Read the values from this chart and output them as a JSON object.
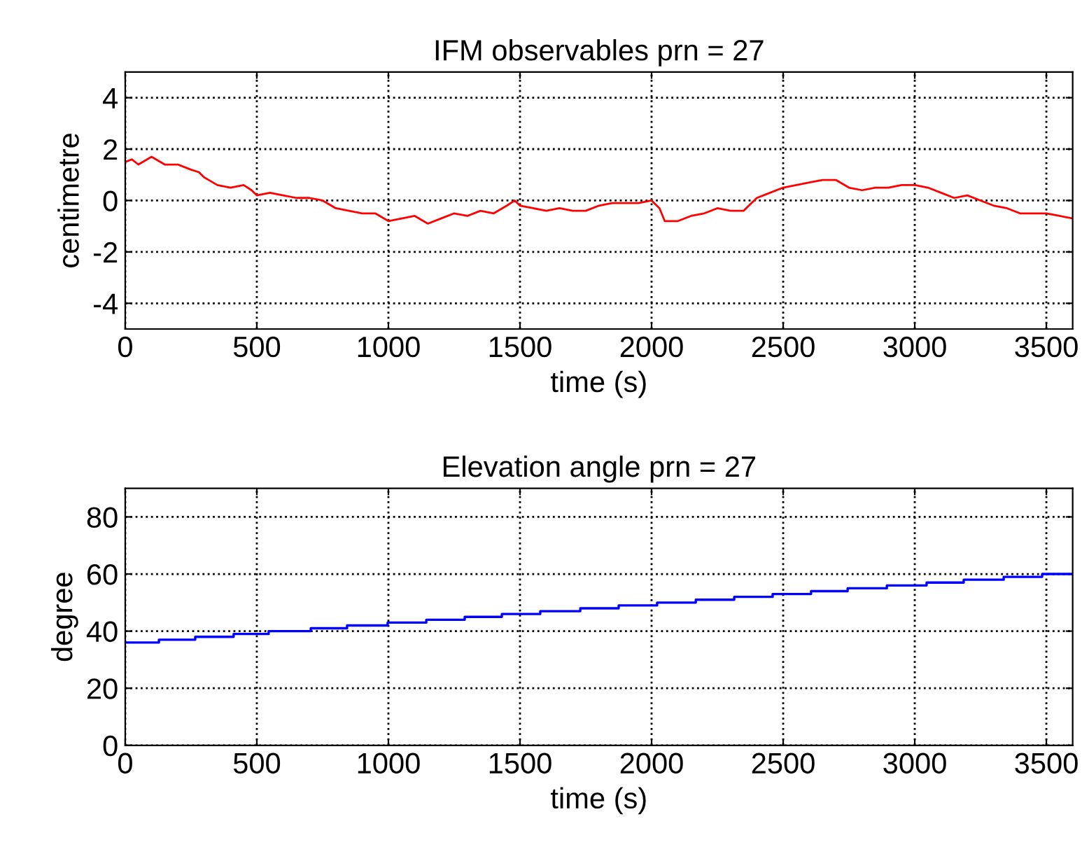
{
  "chart_data": [
    {
      "type": "line",
      "title": "IFM observables prn = 27",
      "xlabel": "time (s)",
      "ylabel": "centimetre",
      "xlim": [
        0,
        3600
      ],
      "xticks": [
        0,
        500,
        1000,
        1500,
        2000,
        2500,
        3000,
        3500
      ],
      "ylim": [
        -5,
        5
      ],
      "yticks": [
        -4,
        -2,
        0,
        2,
        4
      ],
      "grid": true,
      "legend": false,
      "series": [
        {
          "color": "#ff0000",
          "x": [
            0,
            25,
            50,
            100,
            150,
            200,
            250,
            280,
            300,
            350,
            400,
            450,
            480,
            500,
            550,
            600,
            650,
            700,
            750,
            800,
            850,
            900,
            950,
            1000,
            1050,
            1100,
            1150,
            1200,
            1250,
            1300,
            1350,
            1400,
            1450,
            1480,
            1500,
            1550,
            1600,
            1650,
            1700,
            1750,
            1800,
            1850,
            1900,
            1950,
            2000,
            2030,
            2050,
            2100,
            2150,
            2200,
            2250,
            2300,
            2350,
            2380,
            2400,
            2450,
            2500,
            2550,
            2600,
            2650,
            2700,
            2750,
            2800,
            2850,
            2900,
            2950,
            3000,
            3050,
            3100,
            3150,
            3200,
            3250,
            3300,
            3350,
            3400,
            3450,
            3500,
            3550,
            3600
          ],
          "values": [
            1.5,
            1.6,
            1.4,
            1.7,
            1.4,
            1.4,
            1.2,
            1.1,
            0.9,
            0.6,
            0.5,
            0.6,
            0.4,
            0.2,
            0.3,
            0.2,
            0.1,
            0.1,
            0.0,
            -0.3,
            -0.4,
            -0.5,
            -0.5,
            -0.8,
            -0.7,
            -0.6,
            -0.9,
            -0.7,
            -0.5,
            -0.6,
            -0.4,
            -0.5,
            -0.2,
            0.0,
            -0.2,
            -0.3,
            -0.4,
            -0.3,
            -0.4,
            -0.4,
            -0.2,
            -0.1,
            -0.1,
            -0.1,
            0.0,
            -0.3,
            -0.8,
            -0.8,
            -0.6,
            -0.5,
            -0.3,
            -0.4,
            -0.4,
            -0.1,
            0.1,
            0.3,
            0.5,
            0.6,
            0.7,
            0.8,
            0.8,
            0.5,
            0.4,
            0.5,
            0.5,
            0.6,
            0.6,
            0.5,
            0.3,
            0.1,
            0.2,
            0.0,
            -0.2,
            -0.3,
            -0.5,
            -0.5,
            -0.5,
            -0.6,
            -0.7
          ]
        }
      ]
    },
    {
      "type": "step",
      "title": "Elevation angle prn = 27",
      "xlabel": "time (s)",
      "ylabel": "degree",
      "xlim": [
        0,
        3600
      ],
      "xticks": [
        0,
        500,
        1000,
        1500,
        2000,
        2500,
        3000,
        3500
      ],
      "ylim": [
        0,
        90
      ],
      "yticks": [
        0,
        20,
        40,
        60,
        80
      ],
      "grid": true,
      "legend": false,
      "series": [
        {
          "color": "#0000ff",
          "x": [
            0,
            128,
            266,
            412,
            545,
            705,
            843,
            997,
            1144,
            1290,
            1431,
            1577,
            1729,
            1875,
            2021,
            2168,
            2314,
            2460,
            2606,
            2745,
            2894,
            3045,
            3186,
            3338,
            3484,
            3600
          ],
          "values": [
            36,
            37,
            38,
            39,
            40,
            41,
            42,
            43,
            44,
            45,
            46,
            47,
            48,
            49,
            50,
            51,
            52,
            53,
            54,
            55,
            56,
            57,
            58,
            59,
            60,
            60
          ]
        }
      ]
    }
  ]
}
